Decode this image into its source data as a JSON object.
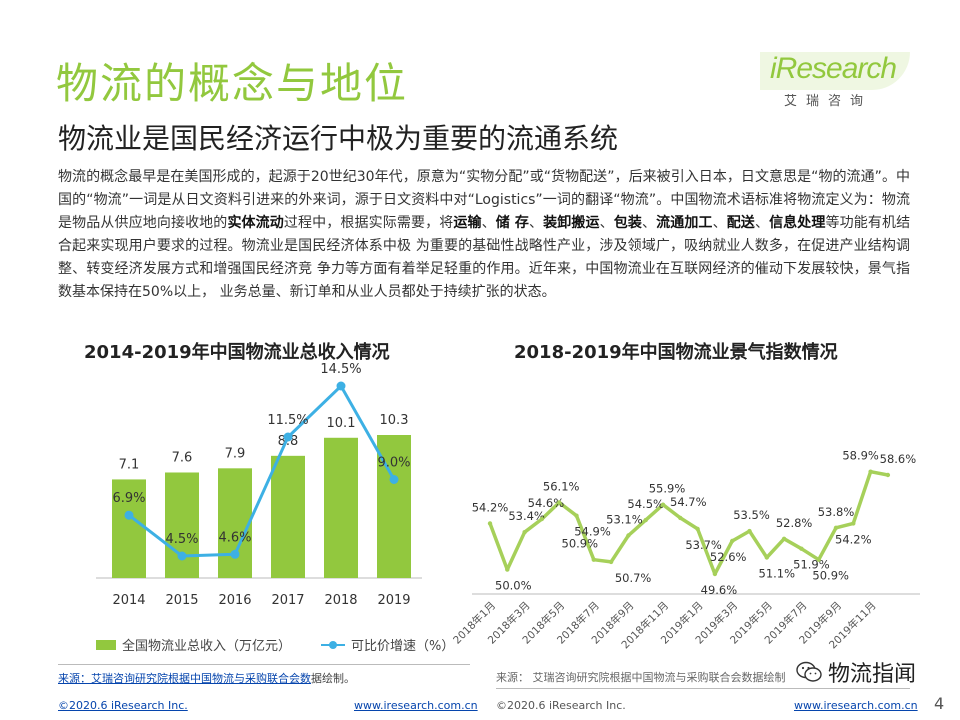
{
  "header": {
    "title": "物流的概念与地位",
    "subtitle": "物流业是国民经济运行中极为重要的流通系统"
  },
  "logo": {
    "wordmark": "iResearch",
    "cn": "艾瑞咨询"
  },
  "body": {
    "p1": "物流的概念最早是在美国形成的，起源于20世纪30年代，原意为“实物分配”或“货物配送”，后来被引入日本，日文意思是“物的流通”。中国的“物流”一词是从日文资料引进来的外来词，源于日文资料中对“Logistics”一词的翻译“物流”。中国物流术语标准将物流定义为：物流是物品从供应地向接收地的",
    "b1": "实体流动",
    "p2": "过程中，根据实际需要，将",
    "b2": "运输",
    "p3": "、",
    "b3": "储 存",
    "p4": "、",
    "b4": "装卸搬运",
    "p5": "、",
    "b5": "包装",
    "p6": "、",
    "b6": "流通加工",
    "p7": "、",
    "b7": "配送",
    "p8": "、",
    "b8": "信息处理",
    "p9": "等功能有机结合起来实现用户要求的过程。物流业是国民经济体系中极 为重要的基础性战略性产业，涉及领域广，吸纳就业人数多，在促进产业结构调整、转变经济发展方式和增强国民经济竞 争力等方面有着举足轻重的作用。近年来，中国物流业在互联网经济的催动下发展较快，景气指数基本保持在50%以上， 业务总量、新订单和从业人员都处于持续扩张的状态。"
  },
  "chart1": {
    "title": "2014-2019年中国物流业总收入情况",
    "legend_bar": "全国物流业总收入（万亿元）",
    "legend_line": "可比价增速（%）",
    "source_prefix": "来源：",
    "source_link": "艾瑞咨询研究院根据中国物流与采购联合会数",
    "source_suffix": "据绘制。"
  },
  "chart2": {
    "title": "2018-2019年中国物流业景气指数情况",
    "source": "来源： 艾瑞咨询研究院根据中国物流与采购联合会数据绘制"
  },
  "chart_data": [
    {
      "type": "bar",
      "title": "2014-2019年中国物流业总收入情况",
      "categories": [
        "2014",
        "2015",
        "2016",
        "2017",
        "2018",
        "2019"
      ],
      "series": [
        {
          "name": "全国物流业总收入（万亿元）",
          "values": [
            7.1,
            7.6,
            7.9,
            8.8,
            10.1,
            10.3
          ]
        },
        {
          "name": "可比价增速（%）",
          "type": "line",
          "values": [
            6.9,
            4.5,
            4.6,
            11.5,
            14.5,
            9.0
          ]
        }
      ],
      "bar_labels": [
        "7.1",
        "7.6",
        "7.9",
        "8.8",
        "10.1",
        "10.3"
      ],
      "line_labels": [
        "6.9%",
        "4.5%",
        "4.6%",
        "11.5%",
        "14.5%",
        "9.0%"
      ],
      "colors": {
        "bar": "#92c83e",
        "line": "#3db0e4"
      },
      "legend": "bottom"
    },
    {
      "type": "line",
      "title": "2018-2019年中国物流业景气指数情况",
      "x": [
        "2018年1月",
        "2018年2月",
        "2018年3月",
        "2018年4月",
        "2018年5月",
        "2018年6月",
        "2018年7月",
        "2018年8月",
        "2018年9月",
        "2018年10月",
        "2018年11月",
        "2018年12月",
        "2019年1月",
        "2019年2月",
        "2019年3月",
        "2019年4月",
        "2019年5月",
        "2019年6月",
        "2019年7月",
        "2019年8月",
        "2019年9月",
        "2019年10月",
        "2019年11月",
        "2019年12月"
      ],
      "x_tick_labels": [
        "2018年1月",
        "2018年3月",
        "2018年5月",
        "2018年7月",
        "2018年9月",
        "2018年11月",
        "2019年1月",
        "2019年3月",
        "2019年5月",
        "2019年7月",
        "2019年9月",
        "2019年11月"
      ],
      "values": [
        54.2,
        50.0,
        53.4,
        54.6,
        56.1,
        54.9,
        50.9,
        50.7,
        53.1,
        54.5,
        55.9,
        54.7,
        53.7,
        49.6,
        52.6,
        53.5,
        51.1,
        52.8,
        51.9,
        50.9,
        53.8,
        54.2,
        58.9,
        58.6
      ],
      "labels": [
        "54.2%",
        "50.0%",
        "53.4%",
        "54.6%",
        "56.1%",
        "54.9%",
        "50.9%",
        "50.7%",
        "53.1%",
        "54.5%",
        "55.9%",
        "54.7%",
        "53.7%",
        "49.6%",
        "52.6%",
        "53.5%",
        "51.1%",
        "52.8%",
        "51.9%",
        "50.9%",
        "53.8%",
        "54.2%",
        "58.9%",
        "58.6%"
      ],
      "colors": {
        "line": "#a6d05a"
      }
    }
  ],
  "footer": {
    "copy1": "©2020.6 iResearch Inc.",
    "url1": "www.iresearch.com.cn",
    "copy2": "©2020.6 iResearch Inc.",
    "url2": "www.iresearch.com.cn",
    "page": "4",
    "wechat": "物流指闻"
  }
}
